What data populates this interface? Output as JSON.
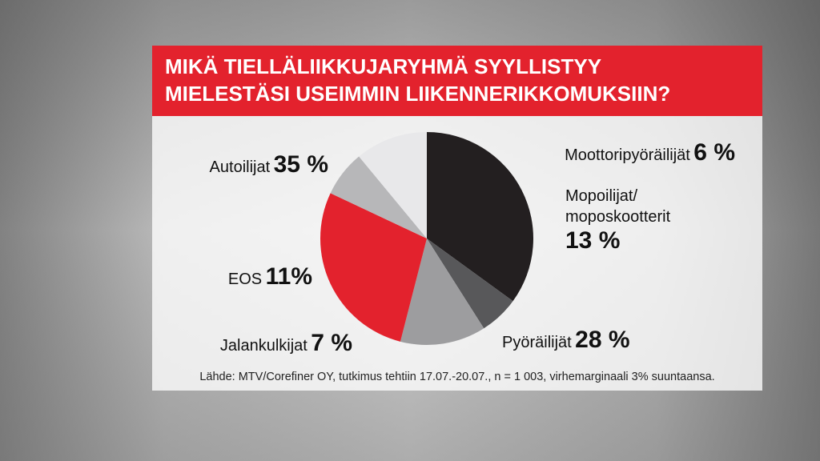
{
  "chart_data": {
    "type": "pie",
    "title": "MIKÄ TIELLÄLIIKKUJARYHMÄ SYYLLISTYY\nMIELESTÄSI USEIMMIN LIIKENNERIKKOMUKSIIN?",
    "categories": [
      "Autoilijat",
      "Moottoripyöräilijät",
      "Mopoilijat/\nmoposkootterit",
      "Pyöräilijät",
      "Jalankulkijat",
      "EOS"
    ],
    "values": [
      35,
      6,
      13,
      28,
      7,
      11
    ],
    "value_labels": [
      "35 %",
      "6 %",
      "13 %",
      "28 %",
      "7 %",
      "11%"
    ],
    "colors": [
      "#231f20",
      "#58585a",
      "#9d9d9f",
      "#e3222d",
      "#b7b7b9",
      "#e8e8ea"
    ],
    "source": "Lähde: MTV/Corefiner OY, tutkimus tehtiin 17.07.-20.07., n = 1 003, virhemarginaali 3% suuntaansa."
  }
}
